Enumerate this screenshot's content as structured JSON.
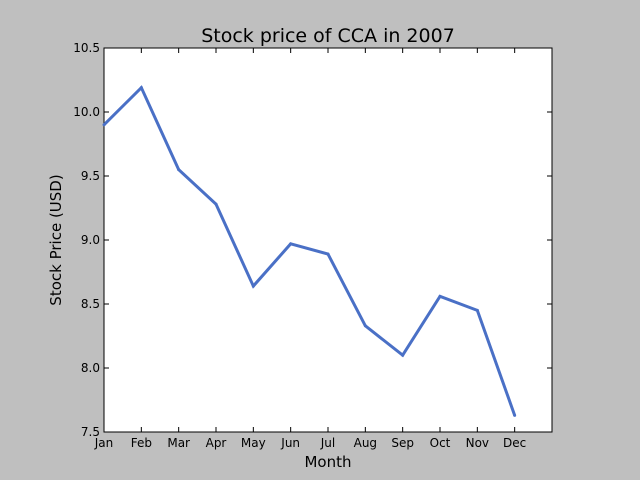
{
  "chart_data": {
    "type": "line",
    "title": "Stock price of CCA in 2007",
    "xlabel": "Month",
    "ylabel": "Stock Price (USD)",
    "categories": [
      "Jan",
      "Feb",
      "Mar",
      "Apr",
      "May",
      "Jun",
      "Jul",
      "Aug",
      "Sep",
      "Oct",
      "Nov",
      "Dec"
    ],
    "series": [
      {
        "values": [
          9.9,
          10.19,
          9.55,
          9.28,
          8.64,
          8.97,
          8.89,
          8.33,
          8.1,
          8.56,
          8.45,
          7.63
        ],
        "color": "#4a70c6"
      }
    ],
    "ylim": [
      7.5,
      10.5
    ],
    "yticks": [
      "7.5",
      "8.0",
      "8.5",
      "9.0",
      "9.5",
      "10.0",
      "10.5"
    ],
    "grid": false,
    "background": "#bfbfbf",
    "plot_background": "#ffffff"
  }
}
